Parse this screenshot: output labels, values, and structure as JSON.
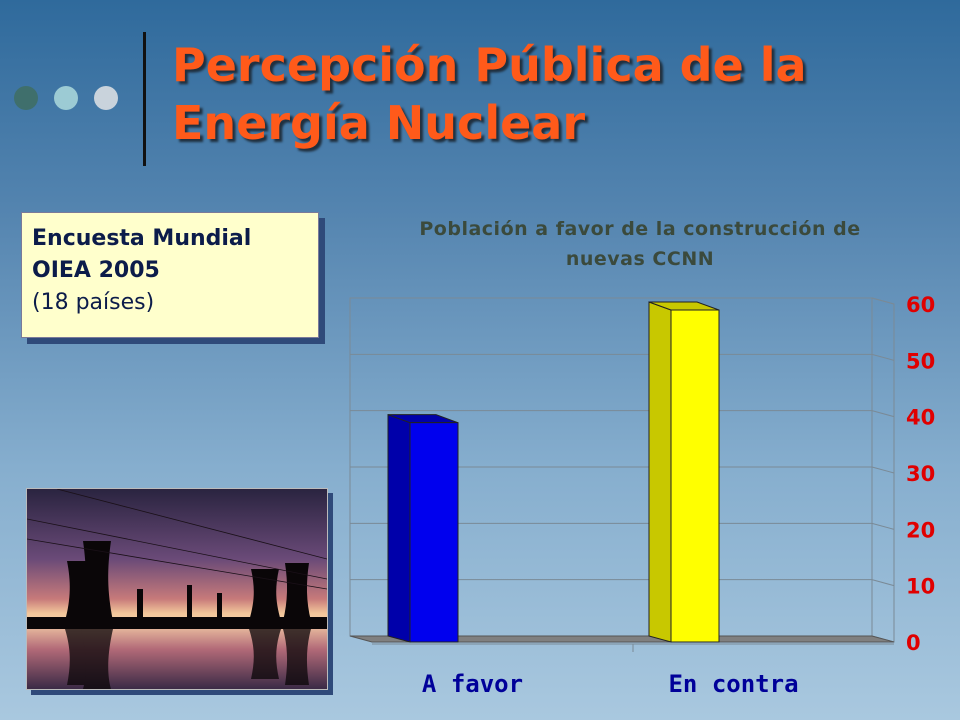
{
  "slide": {
    "title_line1": "Percepción Pública de la",
    "title_line2": "Energía Nuclear"
  },
  "survey": {
    "line1": "Encuesta Mundial",
    "line2": "OIEA 2005",
    "line3": "(18 países)"
  },
  "colors": {
    "title": "#ff5a1a",
    "tick_labels": "#e00000",
    "category_labels": "#000099",
    "box_fill": "#ffffcc"
  },
  "chart_data": {
    "type": "bar",
    "title": "Población a favor de la construcción de nuevas CCNN",
    "title_lines": [
      "Población a favor de la construcción de",
      "nuevas CCNN"
    ],
    "categories": [
      "A favor",
      "En contra"
    ],
    "values": [
      40,
      60
    ],
    "bar_colors": [
      "#0000ee",
      "#ffff00"
    ],
    "ylim": [
      0,
      60
    ],
    "yticks": [
      0,
      10,
      20,
      30,
      40,
      50,
      60
    ],
    "y_axis_side": "right",
    "grid": true,
    "style": "3d"
  }
}
